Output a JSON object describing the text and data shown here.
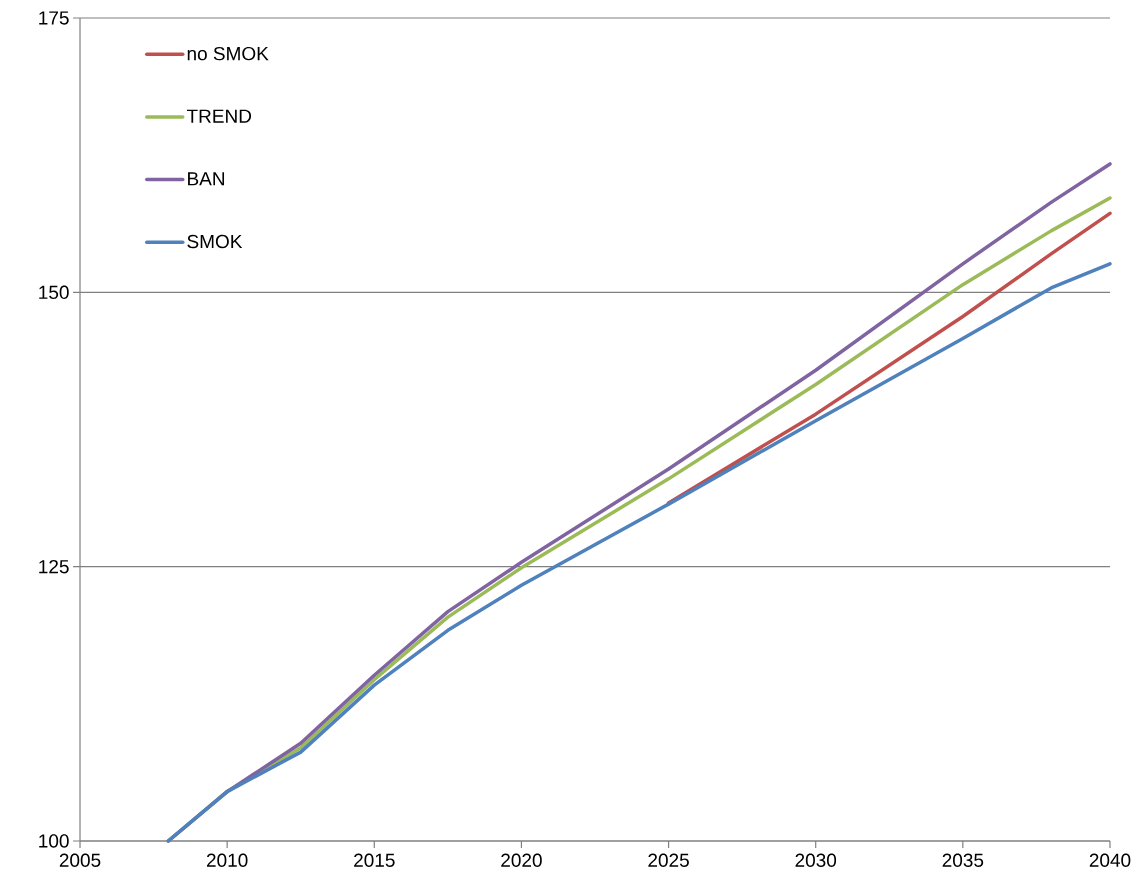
{
  "chart_data": {
    "type": "line",
    "xlim": [
      2005,
      2040
    ],
    "xticks": [
      2005,
      2010,
      2015,
      2020,
      2025,
      2030,
      2035,
      2040
    ],
    "ylim": [
      100,
      175
    ],
    "yticks": [
      100,
      125,
      150,
      175
    ],
    "grid": "y",
    "legend": "top left",
    "marker": "none",
    "line_style": "solid",
    "series": [
      {
        "name": "no SMOK",
        "color": "#c0504d",
        "x": [
          2025,
          2030,
          2035,
          2038,
          2040
        ],
        "values": [
          130.8,
          138.9,
          147.8,
          153.5,
          157.2
        ]
      },
      {
        "name": "TREND",
        "color": "#9bbb59",
        "x": [
          2008,
          2010,
          2012.5,
          2015,
          2017.5,
          2020,
          2025,
          2030,
          2035,
          2038,
          2040
        ],
        "values": [
          100,
          104.5,
          108.5,
          114.7,
          120.4,
          124.9,
          133.0,
          141.6,
          150.7,
          155.6,
          158.6
        ]
      },
      {
        "name": "BAN",
        "color": "#8064a2",
        "x": [
          2008,
          2010,
          2012.5,
          2015,
          2017.5,
          2020,
          2025,
          2030,
          2035,
          2038,
          2040
        ],
        "values": [
          100,
          104.5,
          108.9,
          115.1,
          120.9,
          125.4,
          133.9,
          142.9,
          152.6,
          158.2,
          161.7
        ]
      },
      {
        "name": "SMOK",
        "color": "#4f81bd",
        "x": [
          2008,
          2010,
          2012.5,
          2015,
          2017.5,
          2020,
          2025,
          2030,
          2035,
          2038,
          2040
        ],
        "values": [
          100,
          104.5,
          108.1,
          114.2,
          119.2,
          123.3,
          130.7,
          138.3,
          145.8,
          150.4,
          152.6
        ]
      }
    ]
  }
}
